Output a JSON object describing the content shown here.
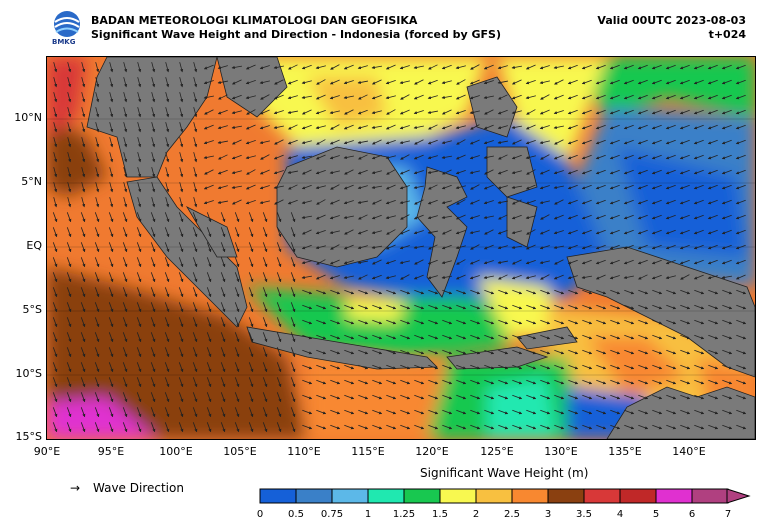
{
  "header": {
    "logo_text": "BMKG",
    "title_line1": "BADAN METEOROLOGI KLIMATOLOGI DAN GEOFISIKA",
    "title_line2": "Significant Wave Height and Direction - Indonesia (forced by GFS)",
    "valid": "Valid 00UTC 2023-08-03",
    "lead": "t+024"
  },
  "axes": {
    "lat_labels": [
      "10°N",
      "5°N",
      "EQ",
      "5°S",
      "10°S",
      "15°S"
    ],
    "lon_labels": [
      "90°E",
      "95°E",
      "100°E",
      "105°E",
      "110°E",
      "115°E",
      "120°E",
      "125°E",
      "130°E",
      "135°E",
      "140°E"
    ]
  },
  "legend": {
    "arrow": "→",
    "direction_label": "Wave Direction",
    "colorbar_title": "Significant Wave Height (m)",
    "ticks": [
      "0",
      "0.5",
      "0.75",
      "1",
      "1.25",
      "1.5",
      "2",
      "2.5",
      "3",
      "3.5",
      "4",
      "5",
      "6",
      "7"
    ],
    "colors": [
      "#1560d8",
      "#3a80c8",
      "#5cb8e8",
      "#20e8b0",
      "#18c850",
      "#f8f850",
      "#f8c040",
      "#f88830",
      "#8a4010",
      "#d83838",
      "#c02828",
      "#e030d0",
      "#b04080"
    ]
  },
  "map": {
    "land_color": "#7a7a7a"
  }
}
